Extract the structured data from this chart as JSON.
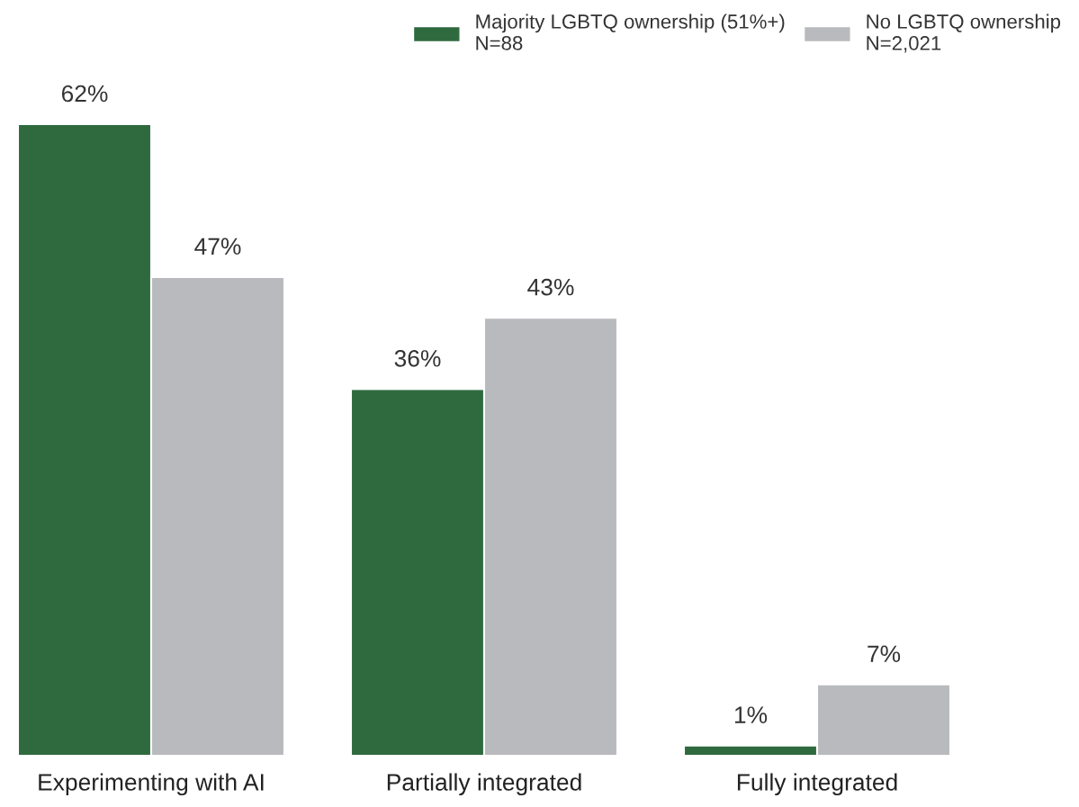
{
  "chart_data": {
    "type": "bar",
    "categories": [
      "Experimenting with AI",
      "Partially integrated",
      "Fully integrated"
    ],
    "series": [
      {
        "name": "Majority LGBTQ ownership (51%+)\nN=88",
        "color": "#2f6a3f",
        "values": [
          62,
          36,
          1
        ],
        "value_labels": [
          "62%",
          "36%",
          "1%"
        ]
      },
      {
        "name": "No LGBTQ ownership\nN=2,021",
        "color": "#b9babe",
        "values": [
          47,
          43,
          7
        ],
        "value_labels": [
          "47%",
          "43%",
          "7%"
        ]
      }
    ],
    "ylim": [
      0,
      62
    ],
    "tick_labels": "x",
    "grid": false,
    "legend": "top right"
  }
}
